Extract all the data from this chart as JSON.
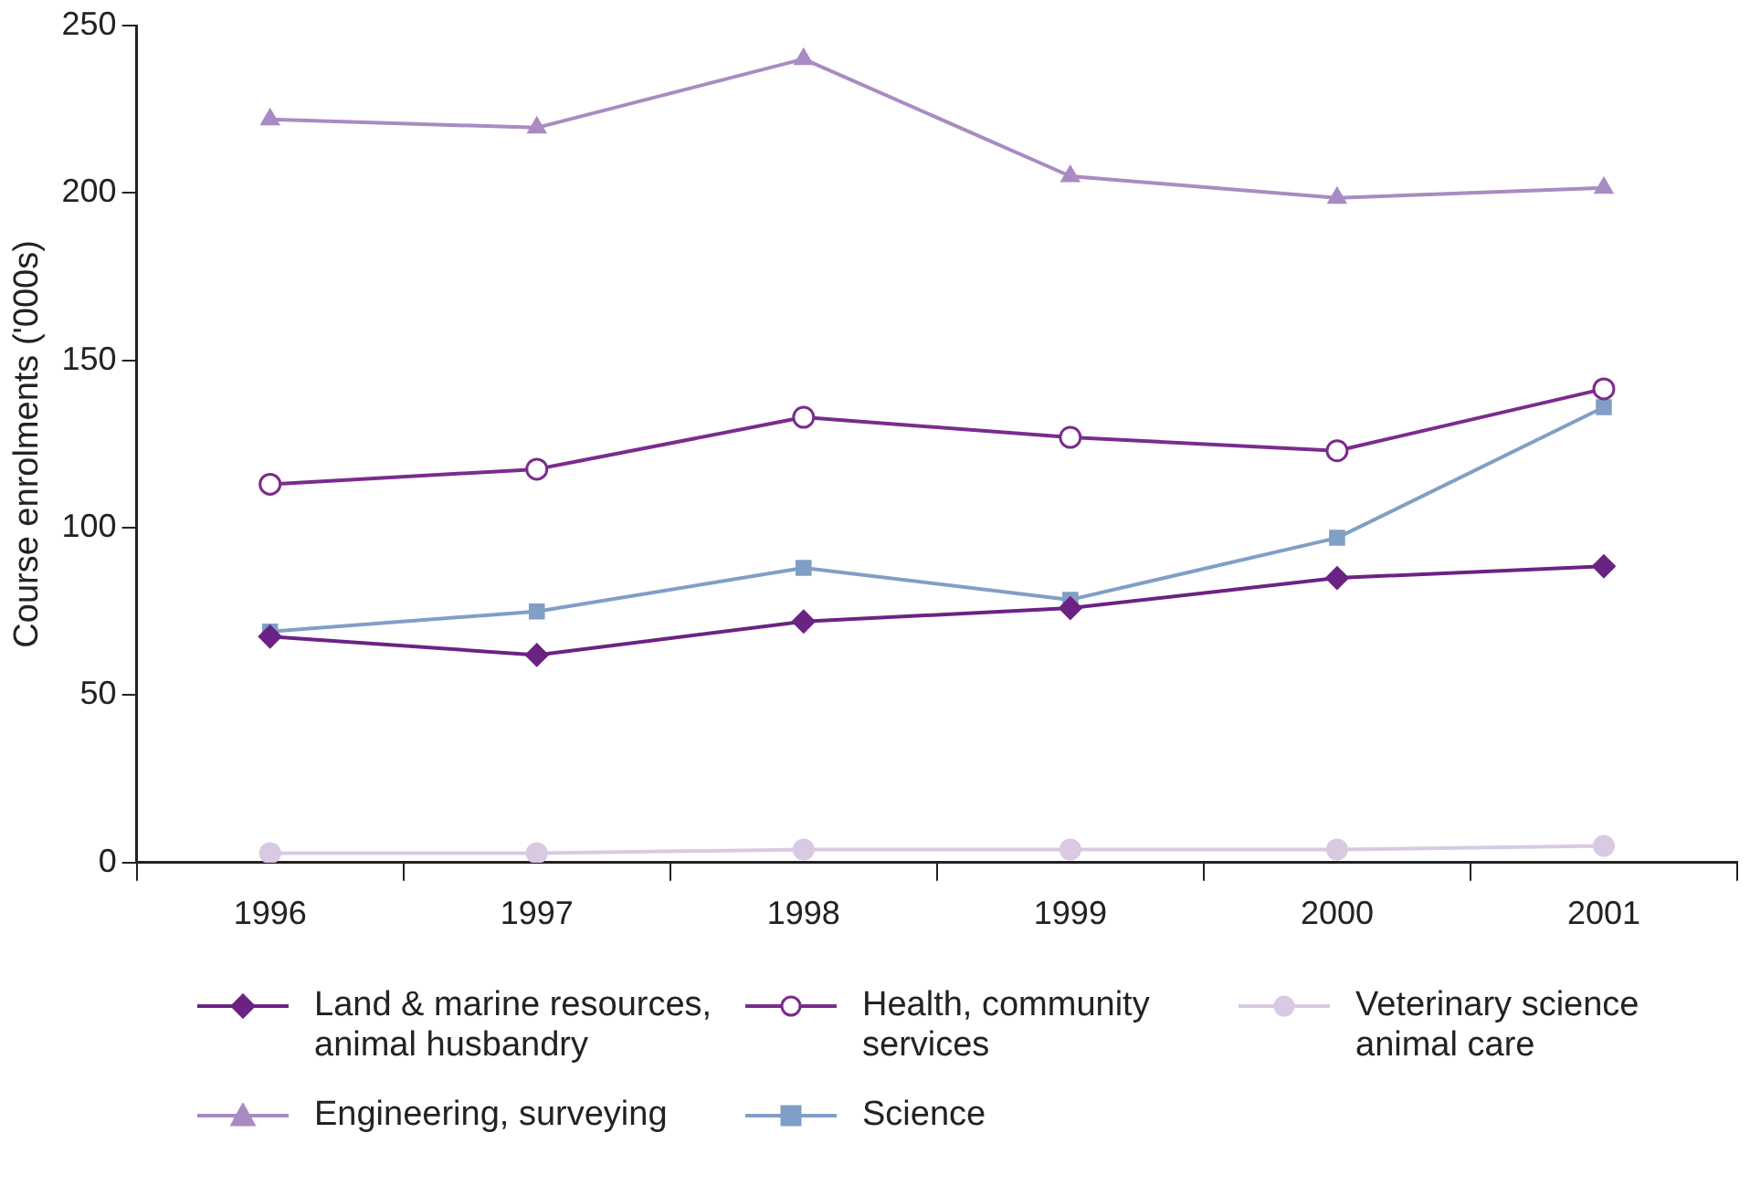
{
  "chart_data": {
    "type": "line",
    "ylabel": "Course enrolments ('000s)",
    "categories": [
      "1996",
      "1997",
      "1998",
      "1999",
      "2000",
      "2001"
    ],
    "ylim": [
      0,
      250
    ],
    "yticks": [
      0,
      50,
      100,
      150,
      200,
      250
    ],
    "grid": false,
    "legend": "bottom",
    "line_style": "solid",
    "series": [
      {
        "name": "Land & marine resources, animal husbandry",
        "color": "#6b2383",
        "marker": "diamond",
        "values": [
          67.5,
          62,
          72,
          76,
          85,
          88.5
        ]
      },
      {
        "name": "Health, community services",
        "color": "#7a2c8c",
        "marker": "circle",
        "values": [
          113,
          117.5,
          133,
          127,
          123,
          141.5
        ]
      },
      {
        "name": "Veterinary science animal care",
        "color": "#d9c9e2",
        "marker": "circle",
        "values": [
          2.8,
          2.8,
          3.9,
          3.9,
          3.9,
          5
        ]
      },
      {
        "name": "Engineering, surveying",
        "color": "#a98bc2",
        "marker": "triangle",
        "values": [
          222,
          219.5,
          240,
          205,
          198.5,
          201.5
        ]
      },
      {
        "name": "Science",
        "color": "#7f9fc6",
        "marker": "square",
        "values": [
          69,
          75,
          88,
          78.5,
          97,
          136
        ]
      }
    ]
  }
}
